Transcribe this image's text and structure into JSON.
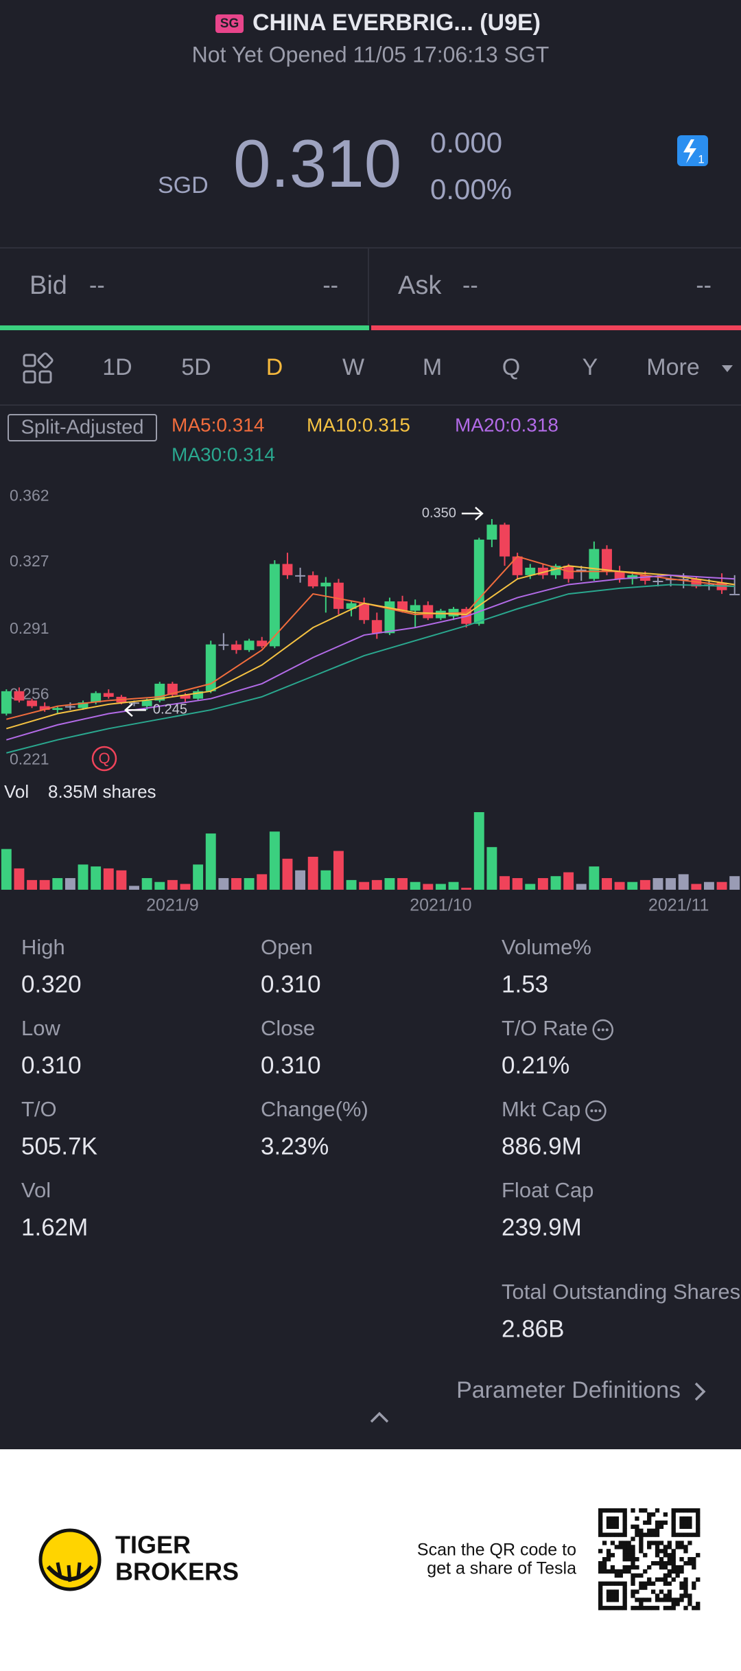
{
  "header": {
    "market_badge": "SG",
    "title": "CHINA EVERBRIG... (U9E)",
    "status": "Not Yet Opened 11/05 17:06:13 SGT"
  },
  "quote": {
    "currency": "SGD",
    "price": "0.310",
    "change": "0.000",
    "change_pct": "0.00%",
    "badge": "1"
  },
  "order_book": {
    "bid_label": "Bid",
    "bid_price": "--",
    "bid_size": "--",
    "ask_label": "Ask",
    "ask_price": "--",
    "ask_size": "--"
  },
  "tabs": [
    "1D",
    "5D",
    "D",
    "W",
    "M",
    "Q",
    "Y",
    "More"
  ],
  "active_tab": 2,
  "chart_data": {
    "type": "candlestick",
    "adjust_label": "Split-Adjusted",
    "marker_label": "Q",
    "colors": {
      "up": "#3bd07f",
      "down": "#f0435a",
      "flat": "#9a9cb5"
    },
    "xlim": [
      -0.5,
      57.5
    ],
    "ylim": [
      0.215,
      0.368
    ],
    "yticks": [
      0.221,
      0.256,
      0.291,
      0.327,
      0.362
    ],
    "xticks": [
      {
        "value": 13,
        "label": "2021/9"
      },
      {
        "value": 34,
        "label": "2021/10"
      },
      {
        "value": 55,
        "label": "2021/11"
      }
    ],
    "open": [
      0.246,
      0.258,
      0.253,
      0.25,
      0.248,
      0.25,
      0.249,
      0.252,
      0.257,
      0.255,
      0.252,
      0.25,
      0.253,
      0.262,
      0.256,
      0.254,
      0.258,
      0.283,
      0.283,
      0.28,
      0.285,
      0.282,
      0.326,
      0.32,
      0.32,
      0.314,
      0.316,
      0.302,
      0.305,
      0.296,
      0.289,
      0.306,
      0.301,
      0.304,
      0.297,
      0.298,
      0.302,
      0.294,
      0.339,
      0.347,
      0.33,
      0.32,
      0.324,
      0.32,
      0.325,
      0.323,
      0.318,
      0.334,
      0.322,
      0.318,
      0.32,
      0.317,
      0.318,
      0.318,
      0.318,
      0.315,
      0.316,
      0.31
    ],
    "high": [
      0.259,
      0.26,
      0.254,
      0.252,
      0.25,
      0.252,
      0.253,
      0.258,
      0.259,
      0.256,
      0.253,
      0.254,
      0.263,
      0.263,
      0.257,
      0.259,
      0.285,
      0.289,
      0.285,
      0.286,
      0.287,
      0.328,
      0.332,
      0.324,
      0.322,
      0.319,
      0.318,
      0.306,
      0.308,
      0.3,
      0.308,
      0.309,
      0.307,
      0.306,
      0.302,
      0.303,
      0.303,
      0.34,
      0.35,
      0.348,
      0.332,
      0.326,
      0.326,
      0.326,
      0.326,
      0.325,
      0.338,
      0.336,
      0.325,
      0.322,
      0.322,
      0.32,
      0.32,
      0.321,
      0.319,
      0.318,
      0.321,
      0.32
    ],
    "low": [
      0.245,
      0.252,
      0.249,
      0.247,
      0.246,
      0.248,
      0.248,
      0.251,
      0.254,
      0.251,
      0.25,
      0.248,
      0.252,
      0.255,
      0.252,
      0.253,
      0.257,
      0.28,
      0.278,
      0.279,
      0.281,
      0.281,
      0.318,
      0.316,
      0.313,
      0.3,
      0.299,
      0.298,
      0.294,
      0.286,
      0.288,
      0.3,
      0.292,
      0.296,
      0.296,
      0.296,
      0.292,
      0.293,
      0.335,
      0.325,
      0.318,
      0.318,
      0.318,
      0.318,
      0.316,
      0.317,
      0.317,
      0.32,
      0.316,
      0.315,
      0.315,
      0.314,
      0.314,
      0.313,
      0.313,
      0.312,
      0.31,
      0.31
    ],
    "close": [
      0.258,
      0.253,
      0.25,
      0.248,
      0.249,
      0.25,
      0.252,
      0.257,
      0.255,
      0.252,
      0.252,
      0.253,
      0.262,
      0.256,
      0.254,
      0.258,
      0.283,
      0.283,
      0.28,
      0.285,
      0.282,
      0.326,
      0.32,
      0.32,
      0.314,
      0.316,
      0.302,
      0.305,
      0.296,
      0.289,
      0.306,
      0.301,
      0.304,
      0.297,
      0.301,
      0.302,
      0.294,
      0.339,
      0.347,
      0.33,
      0.32,
      0.324,
      0.32,
      0.325,
      0.318,
      0.323,
      0.334,
      0.322,
      0.318,
      0.32,
      0.317,
      0.317,
      0.318,
      0.318,
      0.314,
      0.315,
      0.312,
      0.31
    ],
    "volume_label": "Vol",
    "volume_text": "8.35M shares",
    "volume_ylim": [
      0,
      40
    ],
    "volume": [
      21,
      11,
      5,
      5,
      6,
      6,
      13,
      12,
      11,
      10,
      2,
      6,
      4,
      5,
      3,
      13,
      29,
      6,
      6,
      6,
      8,
      30,
      16,
      10,
      17,
      10,
      20,
      5,
      4,
      5,
      6,
      6,
      4,
      3,
      3,
      4,
      1,
      40,
      22,
      7,
      6,
      3,
      6,
      7,
      9,
      3,
      12,
      6,
      4,
      4,
      5,
      6,
      6,
      8,
      3,
      4,
      4,
      7
    ],
    "series": [
      {
        "name": "MA5:0.314",
        "color": "#f26d3d",
        "x": [
          0,
          4,
          8,
          12,
          16,
          20,
          24,
          28,
          32,
          36,
          40,
          44,
          48,
          52,
          57
        ],
        "values": [
          0.243,
          0.25,
          0.253,
          0.255,
          0.262,
          0.28,
          0.31,
          0.305,
          0.299,
          0.3,
          0.33,
          0.322,
          0.322,
          0.318,
          0.314
        ]
      },
      {
        "name": "MA10:0.315",
        "color": "#f5c242",
        "x": [
          0,
          4,
          8,
          12,
          16,
          20,
          24,
          28,
          32,
          36,
          40,
          44,
          48,
          52,
          57
        ],
        "values": [
          0.238,
          0.246,
          0.251,
          0.254,
          0.258,
          0.272,
          0.292,
          0.305,
          0.3,
          0.299,
          0.318,
          0.325,
          0.322,
          0.32,
          0.315
        ]
      },
      {
        "name": "MA20:0.318",
        "color": "#b36be8",
        "x": [
          0,
          4,
          8,
          12,
          16,
          20,
          24,
          28,
          32,
          36,
          40,
          44,
          48,
          52,
          57
        ],
        "values": [
          0.232,
          0.24,
          0.246,
          0.25,
          0.254,
          0.262,
          0.276,
          0.288,
          0.292,
          0.298,
          0.308,
          0.315,
          0.318,
          0.32,
          0.318
        ]
      },
      {
        "name": "MA30:0.314",
        "color": "#2aa88f",
        "x": [
          0,
          4,
          8,
          12,
          16,
          20,
          24,
          28,
          32,
          36,
          40,
          44,
          48,
          52,
          57
        ],
        "values": [
          0.225,
          0.232,
          0.238,
          0.243,
          0.248,
          0.255,
          0.266,
          0.277,
          0.285,
          0.293,
          0.302,
          0.31,
          0.313,
          0.315,
          0.314
        ]
      }
    ],
    "annotations": [
      {
        "x": 38,
        "value": 0.35,
        "label": "0.350",
        "direction": "right"
      },
      {
        "x": 9,
        "value": 0.245,
        "label": "0.245",
        "direction": "left"
      }
    ]
  },
  "stats": [
    [
      {
        "label": "High",
        "value": "0.320"
      },
      {
        "label": "Low",
        "value": "0.310"
      },
      {
        "label": "T/O",
        "value": "505.7K"
      },
      {
        "label": "Vol",
        "value": "1.62M"
      }
    ],
    [
      {
        "label": "Open",
        "value": "0.310"
      },
      {
        "label": "Close",
        "value": "0.310"
      },
      {
        "label": "Change(%)",
        "value": "3.23%"
      }
    ],
    [
      {
        "label": "Volume%",
        "value": "1.53"
      },
      {
        "label": "T/O Rate",
        "value": "0.21%",
        "info": true
      },
      {
        "label": "Mkt Cap",
        "value": "886.9M",
        "info": true
      },
      {
        "label": "Float Cap",
        "value": "239.9M"
      },
      {
        "label": "Total Outstanding Shares",
        "value": "2.86B"
      }
    ]
  ],
  "footer_link": "Parameter Definitions",
  "footer": {
    "brand_line1": "TIGER",
    "brand_line2": "BROKERS",
    "promo_line1": "Scan the QR code to",
    "promo_line2": "get a share of Tesla"
  }
}
